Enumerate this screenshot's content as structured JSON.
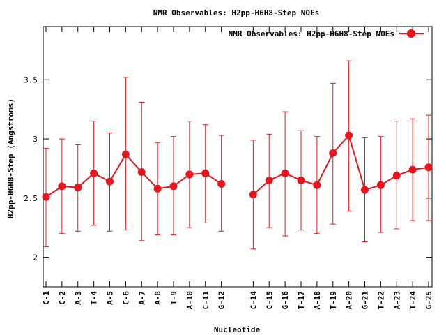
{
  "chart_data": {
    "type": "line",
    "title": "NMR Observables: H2pp-H6H8-Step NOEs",
    "xlabel": "Nucleotide",
    "ylabel": "H2pp-H6H8-Step (Angstroms)",
    "ylim": [
      1.75,
      3.95
    ],
    "yticks": [
      "2",
      "2.5",
      "3",
      "3.5"
    ],
    "yticks_values": [
      2,
      2.5,
      3,
      3.5
    ],
    "legend_position": "top-right",
    "grid": false,
    "categories": [
      "C-1",
      "C-2",
      "A-3",
      "T-4",
      "A-5",
      "C-6",
      "A-7",
      "A-8",
      "T-9",
      "A-10",
      "C-11",
      "G-12",
      "",
      "C-14",
      "C-15",
      "G-16",
      "T-17",
      "A-18",
      "T-19",
      "A-20",
      "G-21",
      "T-22",
      "A-23",
      "T-24",
      "G-25"
    ],
    "series": [
      {
        "name": "NMR Observables: H2pp-H6H8-Step NOEs",
        "color": "#e8141c",
        "values": [
          2.51,
          2.6,
          2.59,
          2.71,
          2.64,
          2.87,
          2.72,
          2.58,
          2.6,
          2.7,
          2.71,
          2.62,
          null,
          2.53,
          2.65,
          2.71,
          2.65,
          2.61,
          2.88,
          3.03,
          2.57,
          2.61,
          2.69,
          2.74,
          2.76
        ],
        "error_low": [
          2.09,
          2.2,
          2.22,
          2.27,
          2.22,
          2.23,
          2.14,
          2.19,
          2.19,
          2.25,
          2.29,
          2.22,
          null,
          2.07,
          2.25,
          2.18,
          2.23,
          2.2,
          2.28,
          2.39,
          2.13,
          2.21,
          2.24,
          2.31,
          2.31
        ],
        "error_high": [
          2.92,
          3.0,
          2.95,
          3.15,
          3.05,
          3.52,
          3.31,
          2.97,
          3.02,
          3.15,
          3.12,
          3.03,
          null,
          2.99,
          3.04,
          3.23,
          3.07,
          3.02,
          3.47,
          3.66,
          3.01,
          3.02,
          3.15,
          3.17,
          3.2
        ]
      }
    ]
  }
}
